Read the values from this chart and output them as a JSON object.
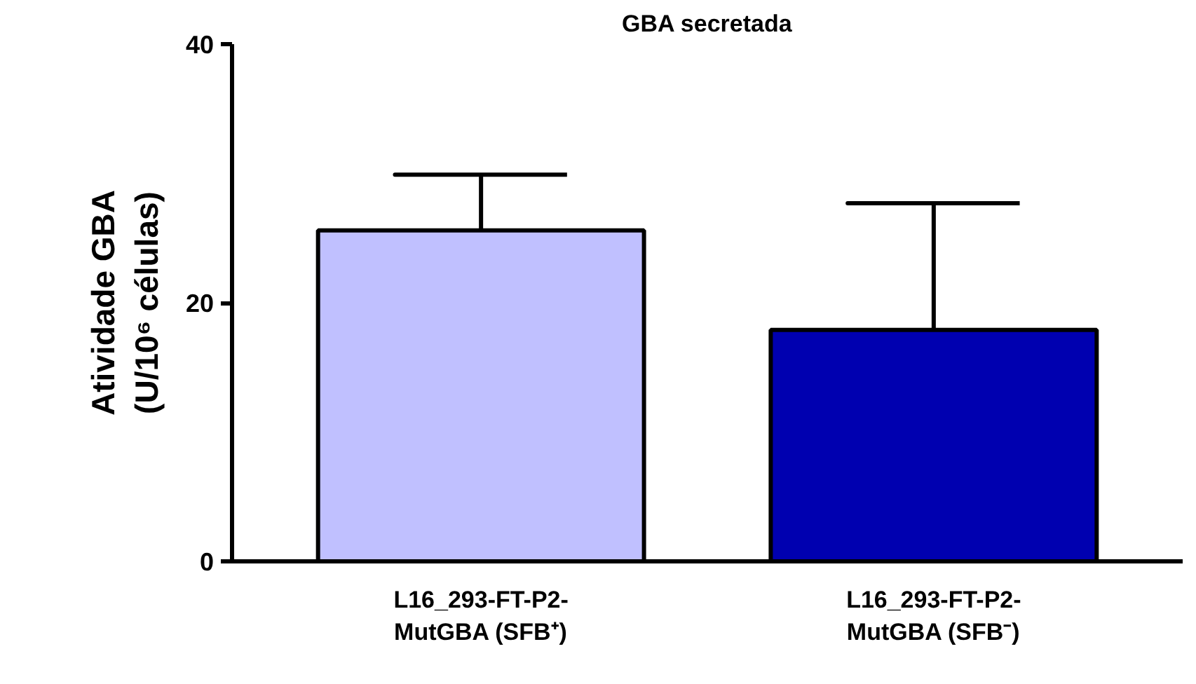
{
  "chart_data": {
    "type": "bar",
    "title": "GBA secretada",
    "ylabel": "Atividade GBA\n(U/10⁶ células)",
    "categories": [
      "L16_293-FT-P2-\nMutGBA (SFB⁺)",
      "L16_293-FT-P2-\nMutGBA (SFB⁻)"
    ],
    "values": [
      25.6,
      17.9
    ],
    "colors": [
      "#c0c0ff",
      "#0000b0"
    ],
    "errors": [
      [
        25.6,
        29.9
      ],
      [
        17.9,
        27.7
      ]
    ],
    "ylim": [
      0,
      40
    ],
    "yticks": [
      0,
      20,
      40
    ],
    "grid": false
  }
}
